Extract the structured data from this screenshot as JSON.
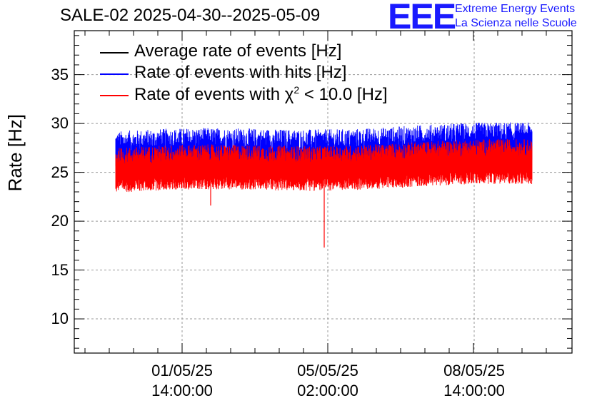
{
  "chart_data": {
    "type": "line",
    "title": "SALE-02 2025-04-30--2025-05-09",
    "ylabel": "Rate [Hz]",
    "xlabel": "",
    "ylim": [
      6.5,
      39.5
    ],
    "yticks": [
      10,
      15,
      20,
      25,
      30,
      35
    ],
    "xticks": [
      {
        "date": "01/05/25",
        "time": "14:00:00"
      },
      {
        "date": "05/05/25",
        "time": "02:00:00"
      },
      {
        "date": "08/05/25",
        "time": "14:00:00"
      }
    ],
    "grid": true,
    "legend_position": "top-left",
    "series": [
      {
        "name": "Average rate of events [Hz]",
        "color": "#000000",
        "values": []
      },
      {
        "name": "Rate of events with hits [Hz]",
        "color": "#0000ff",
        "mean": 27.5,
        "range": [
          25.8,
          30.0
        ]
      },
      {
        "name": "Rate of events with χ² < 10.0 [Hz]",
        "color": "#ff0000",
        "mean": 25.2,
        "range": [
          21.6,
          27.7
        ],
        "min_spike": 17.3
      }
    ]
  },
  "branding": {
    "logo": "EEE",
    "line1": "Extreme Energy Events",
    "line2": "La Scienza nelle Scuole"
  },
  "legend": {
    "item1_prefix": "Average rate of events [Hz]",
    "item2_prefix": "Rate of events with hits [Hz]",
    "item3_prefix": "Rate of events with χ",
    "item3_sup": "2",
    "item3_suffix": " < 10.0 [Hz]"
  }
}
